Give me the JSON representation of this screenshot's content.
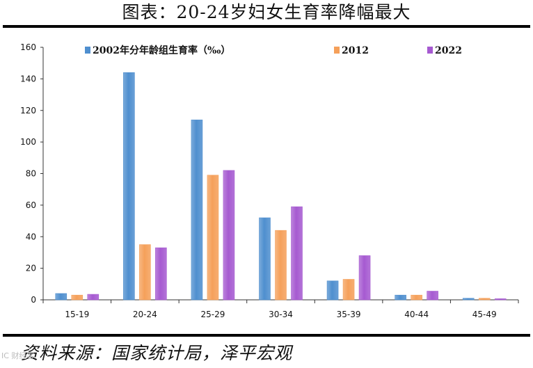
{
  "title": "图表：20-24岁妇女生育率降幅最大",
  "source": "资料来源：国家统计局，泽平宏观",
  "watermark": "IC 财经客",
  "colors": {
    "series_2002": "#4f8fcf",
    "series_2012": "#f5a05a",
    "series_2022": "#a65ad1"
  },
  "chart_data": {
    "type": "bar",
    "categories": [
      "15-19",
      "20-24",
      "25-29",
      "30-34",
      "35-39",
      "40-44",
      "45-49"
    ],
    "series": [
      {
        "name": "2002年分年龄组生育率（‰）",
        "values": [
          4,
          144,
          114,
          52,
          12,
          3,
          1
        ]
      },
      {
        "name": "2012",
        "values": [
          3,
          35,
          79,
          44,
          13,
          3,
          1
        ]
      },
      {
        "name": "2022",
        "values": [
          3.5,
          33,
          82,
          59,
          28,
          5.5,
          0.7
        ]
      }
    ],
    "yticks": [
      "0",
      "20",
      "40",
      "60",
      "80",
      "100",
      "120",
      "140",
      "160"
    ],
    "ylim": [
      0,
      160
    ],
    "legend_position": "top",
    "grid": false
  }
}
